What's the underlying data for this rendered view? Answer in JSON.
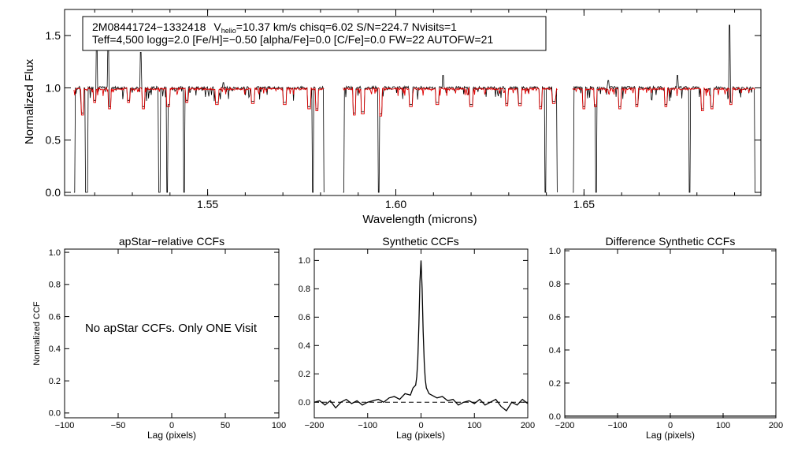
{
  "chart_data": [
    {
      "type": "line",
      "panel": "spectrum",
      "title": "",
      "xlabel": "Wavelength (microns)",
      "ylabel": "Normalized Flux",
      "xlim": [
        1.512,
        1.697
      ],
      "ylim": [
        -0.03,
        1.75
      ],
      "x_ticks": [
        "1.55",
        "1.60",
        "1.65"
      ],
      "x_tick_values": [
        1.55,
        1.6,
        1.65
      ],
      "y_ticks": [
        "0.0",
        "0.5",
        "1.0",
        "1.5"
      ],
      "y_tick_values": [
        0.0,
        0.5,
        1.0,
        1.5
      ],
      "annotation": {
        "star_id": "2M08441724−1332418",
        "v_prefix": "V",
        "v_sub": "helio",
        "v_rest": "=10.37 km/s  chisq=6.02  S/N=224.7  Nvisits=1",
        "line2": "Teff=4,500 logg=2.0 [Fe/H]=−0.50 [alpha/Fe]=0.0 [C/Fe]=0.0 FW=22 AUTOFW=21"
      },
      "chips": [
        {
          "start": 1.5145,
          "end": 1.581
        },
        {
          "start": 1.586,
          "end": 1.643
        },
        {
          "start": 1.647,
          "end": 1.6955
        }
      ],
      "continuum": 1.0,
      "series": [
        {
          "role": "observed",
          "color": "#000000"
        },
        {
          "role": "model",
          "color": "#e00000"
        }
      ],
      "deep_drops": [
        {
          "x": 1.5145,
          "y": 0.0
        },
        {
          "x": 1.5176,
          "y": 0.0
        },
        {
          "x": 1.518,
          "y": 0.0
        },
        {
          "x": 1.5372,
          "y": 0.0
        },
        {
          "x": 1.5393,
          "y": 0.0
        },
        {
          "x": 1.5438,
          "y": 0.0
        },
        {
          "x": 1.5779,
          "y": 0.0
        },
        {
          "x": 1.581,
          "y": 0.0
        },
        {
          "x": 1.586,
          "y": 0.0
        },
        {
          "x": 1.5955,
          "y": 0.0
        },
        {
          "x": 1.6397,
          "y": 0.0
        },
        {
          "x": 1.643,
          "y": 0.0
        },
        {
          "x": 1.647,
          "y": 0.0
        },
        {
          "x": 1.6532,
          "y": 0.0
        },
        {
          "x": 1.6781,
          "y": 0.0
        },
        {
          "x": 1.6955,
          "y": 0.0
        }
      ],
      "emission_spikes": [
        {
          "x": 1.5206,
          "y": 1.43
        },
        {
          "x": 1.5236,
          "y": 1.45
        },
        {
          "x": 1.5322,
          "y": 1.34
        },
        {
          "x": 1.5542,
          "y": 1.05
        },
        {
          "x": 1.6125,
          "y": 1.12
        },
        {
          "x": 1.6565,
          "y": 1.07
        },
        {
          "x": 1.6748,
          "y": 1.12
        },
        {
          "x": 1.6887,
          "y": 1.6
        }
      ],
      "model_lines": [
        {
          "x": 1.5168,
          "y": 0.74
        },
        {
          "x": 1.52,
          "y": 0.86
        },
        {
          "x": 1.524,
          "y": 0.8
        },
        {
          "x": 1.529,
          "y": 0.86
        },
        {
          "x": 1.533,
          "y": 0.8
        },
        {
          "x": 1.5395,
          "y": 0.82
        },
        {
          "x": 1.5445,
          "y": 0.86
        },
        {
          "x": 1.5525,
          "y": 0.84
        },
        {
          "x": 1.562,
          "y": 0.85
        },
        {
          "x": 1.5705,
          "y": 0.84
        },
        {
          "x": 1.577,
          "y": 0.8
        },
        {
          "x": 1.579,
          "y": 0.78
        },
        {
          "x": 1.589,
          "y": 0.74
        },
        {
          "x": 1.5912,
          "y": 0.75
        },
        {
          "x": 1.596,
          "y": 0.73
        },
        {
          "x": 1.604,
          "y": 0.82
        },
        {
          "x": 1.611,
          "y": 0.84
        },
        {
          "x": 1.62,
          "y": 0.82
        },
        {
          "x": 1.6295,
          "y": 0.83
        },
        {
          "x": 1.633,
          "y": 0.83
        },
        {
          "x": 1.6385,
          "y": 0.8
        },
        {
          "x": 1.642,
          "y": 0.85
        },
        {
          "x": 1.65,
          "y": 0.8
        },
        {
          "x": 1.653,
          "y": 0.82
        },
        {
          "x": 1.6595,
          "y": 0.8
        },
        {
          "x": 1.664,
          "y": 0.82
        },
        {
          "x": 1.6718,
          "y": 0.82
        },
        {
          "x": 1.6815,
          "y": 0.78
        },
        {
          "x": 1.684,
          "y": 0.8
        },
        {
          "x": 1.689,
          "y": 0.84
        }
      ]
    },
    {
      "type": "line",
      "panel": "apstar-ccf",
      "title": "apStar−relative CCFs",
      "xlabel": "Lag (pixels)",
      "ylabel": "Normalized CCF",
      "xlim": [
        -100,
        100
      ],
      "ylim": [
        -0.03,
        1.02
      ],
      "x_ticks": [
        "−100",
        "−50",
        "0",
        "50",
        "100"
      ],
      "x_tick_values": [
        -100,
        -50,
        0,
        50,
        100
      ],
      "y_ticks": [
        "0.0",
        "0.2",
        "0.4",
        "0.6",
        "0.8",
        "1.0"
      ],
      "y_tick_values": [
        0.0,
        0.2,
        0.4,
        0.6,
        0.8,
        1.0
      ],
      "message": "No apStar CCFs.  Only ONE Visit",
      "series": []
    },
    {
      "type": "line",
      "panel": "synthetic-ccf",
      "title": "Synthetic CCFs",
      "xlabel": "Lag (pixels)",
      "ylabel": "",
      "xlim": [
        -200,
        200
      ],
      "ylim": [
        -0.11,
        1.08
      ],
      "x_ticks": [
        "−200",
        "−100",
        "0",
        "100",
        "200"
      ],
      "x_tick_values": [
        -200,
        -100,
        0,
        100,
        200
      ],
      "y_ticks": [
        "0.0",
        "0.2",
        "0.4",
        "0.6",
        "0.8",
        "1.0"
      ],
      "y_tick_values": [
        0.0,
        0.2,
        0.4,
        0.6,
        0.8,
        1.0
      ],
      "reference_line": 0.0,
      "series": [
        {
          "color": "#000000",
          "x": [
            -200,
            -190,
            -180,
            -170,
            -160,
            -150,
            -140,
            -130,
            -120,
            -110,
            -100,
            -90,
            -80,
            -70,
            -60,
            -50,
            -40,
            -30,
            -20,
            -15,
            -10,
            -8,
            -6,
            -4,
            -2,
            0,
            2,
            4,
            6,
            8,
            10,
            15,
            20,
            30,
            40,
            50,
            60,
            70,
            80,
            90,
            100,
            110,
            120,
            130,
            140,
            150,
            160,
            170,
            180,
            190,
            200
          ],
          "y": [
            0.0,
            0.01,
            -0.02,
            0.01,
            -0.04,
            0.0,
            0.02,
            -0.01,
            0.01,
            -0.02,
            0.0,
            0.01,
            0.02,
            0.0,
            0.03,
            0.04,
            0.02,
            0.06,
            0.05,
            0.1,
            0.12,
            0.18,
            0.3,
            0.55,
            0.85,
            1.0,
            0.8,
            0.5,
            0.28,
            0.16,
            0.1,
            0.06,
            0.05,
            0.03,
            0.04,
            0.01,
            0.02,
            -0.02,
            0.0,
            0.01,
            -0.01,
            0.02,
            -0.02,
            0.0,
            0.02,
            -0.03,
            -0.06,
            0.0,
            -0.02,
            0.02,
            -0.01
          ]
        }
      ]
    },
    {
      "type": "line",
      "panel": "difference-ccf",
      "title": "Difference Synthetic CCFs",
      "xlabel": "Lag (pixels)",
      "ylabel": "",
      "xlim": [
        -200,
        200
      ],
      "ylim": [
        -0.01,
        1.01
      ],
      "x_ticks": [
        "−200",
        "−100",
        "0",
        "100",
        "200"
      ],
      "x_tick_values": [
        -200,
        -100,
        0,
        100,
        200
      ],
      "y_ticks": [
        "0.0",
        "0.2",
        "0.4",
        "0.6",
        "0.8",
        "1.0"
      ],
      "y_tick_values": [
        0.0,
        0.2,
        0.4,
        0.6,
        0.8,
        1.0
      ],
      "series": [
        {
          "color": "#000000",
          "x": [
            -200,
            200
          ],
          "y": [
            0.0,
            0.0
          ]
        }
      ]
    }
  ]
}
